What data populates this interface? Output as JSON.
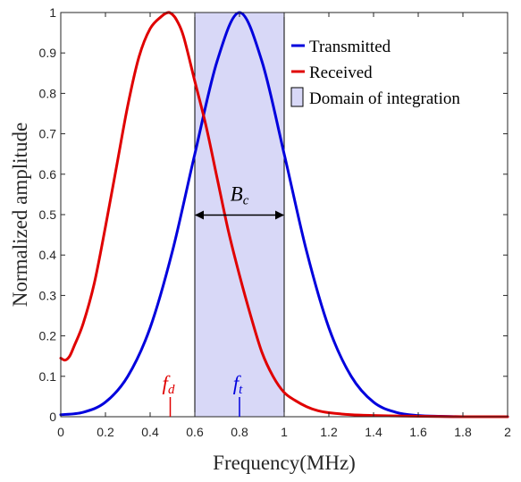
{
  "chart_data": {
    "type": "line",
    "xlabel": "Frequency(MHz)",
    "ylabel": "Normalized amplitude",
    "xlim": [
      0,
      2
    ],
    "ylim": [
      0,
      1
    ],
    "xticks": [
      0,
      0.2,
      0.4,
      0.6,
      0.8,
      1,
      1.2,
      1.4,
      1.6,
      1.8,
      2
    ],
    "xtick_labels": [
      "0",
      "0.2",
      "0.4",
      "0.6",
      "0.8",
      "1",
      "1.2",
      "1.4",
      "1.6",
      "1.8",
      "2"
    ],
    "yticks": [
      0,
      0.1,
      0.2,
      0.3,
      0.4,
      0.5,
      0.6,
      0.7,
      0.8,
      0.9,
      1
    ],
    "ytick_labels": [
      "0",
      "0.1",
      "0.2",
      "0.3",
      "0.4",
      "0.5",
      "0.6",
      "0.7",
      "0.8",
      "0.9",
      "1"
    ],
    "grid": false,
    "legend_position": "top-right",
    "legend": [
      "Transmitted",
      "Received",
      "Domain of integration"
    ],
    "series": [
      {
        "name": "Transmitted",
        "color": "#0000dd",
        "x": [
          0,
          0.1,
          0.2,
          0.3,
          0.4,
          0.5,
          0.6,
          0.7,
          0.8,
          0.9,
          1.0,
          1.1,
          1.2,
          1.3,
          1.4,
          1.5,
          1.6,
          1.7,
          1.8,
          1.9,
          2.0
        ],
        "y": [
          0.005,
          0.011,
          0.036,
          0.1,
          0.22,
          0.41,
          0.65,
          0.88,
          1.0,
          0.88,
          0.65,
          0.41,
          0.22,
          0.1,
          0.036,
          0.011,
          0.003,
          0.001,
          0.0,
          0.0,
          0.0
        ]
      },
      {
        "name": "Received",
        "color": "#e00000",
        "x": [
          0,
          0.02,
          0.04,
          0.06,
          0.1,
          0.15,
          0.2,
          0.25,
          0.3,
          0.35,
          0.4,
          0.45,
          0.48,
          0.5,
          0.52,
          0.55,
          0.6,
          0.65,
          0.7,
          0.75,
          0.8,
          0.85,
          0.9,
          0.95,
          1.0,
          1.05,
          1.1,
          1.15,
          1.2,
          1.3,
          1.4,
          1.5,
          1.6,
          1.8,
          2.0
        ],
        "y": [
          0.145,
          0.14,
          0.15,
          0.175,
          0.23,
          0.33,
          0.47,
          0.62,
          0.77,
          0.89,
          0.96,
          0.99,
          1.0,
          0.995,
          0.98,
          0.94,
          0.83,
          0.72,
          0.59,
          0.46,
          0.35,
          0.25,
          0.16,
          0.1,
          0.06,
          0.04,
          0.025,
          0.015,
          0.01,
          0.005,
          0.003,
          0.002,
          0.001,
          0.0,
          0.0
        ]
      }
    ],
    "domain_of_integration": {
      "x0": 0.6,
      "x1": 1.0,
      "color": "#d8d8f7"
    },
    "annotations": {
      "bandwidth": {
        "label": "B",
        "subscript": "c",
        "y": 0.5
      },
      "markers": [
        {
          "label": "f",
          "subscript": "d",
          "x": 0.49,
          "color": "#e00000"
        },
        {
          "label": "f",
          "subscript": "t",
          "x": 0.8,
          "color": "#0000dd"
        }
      ]
    }
  }
}
